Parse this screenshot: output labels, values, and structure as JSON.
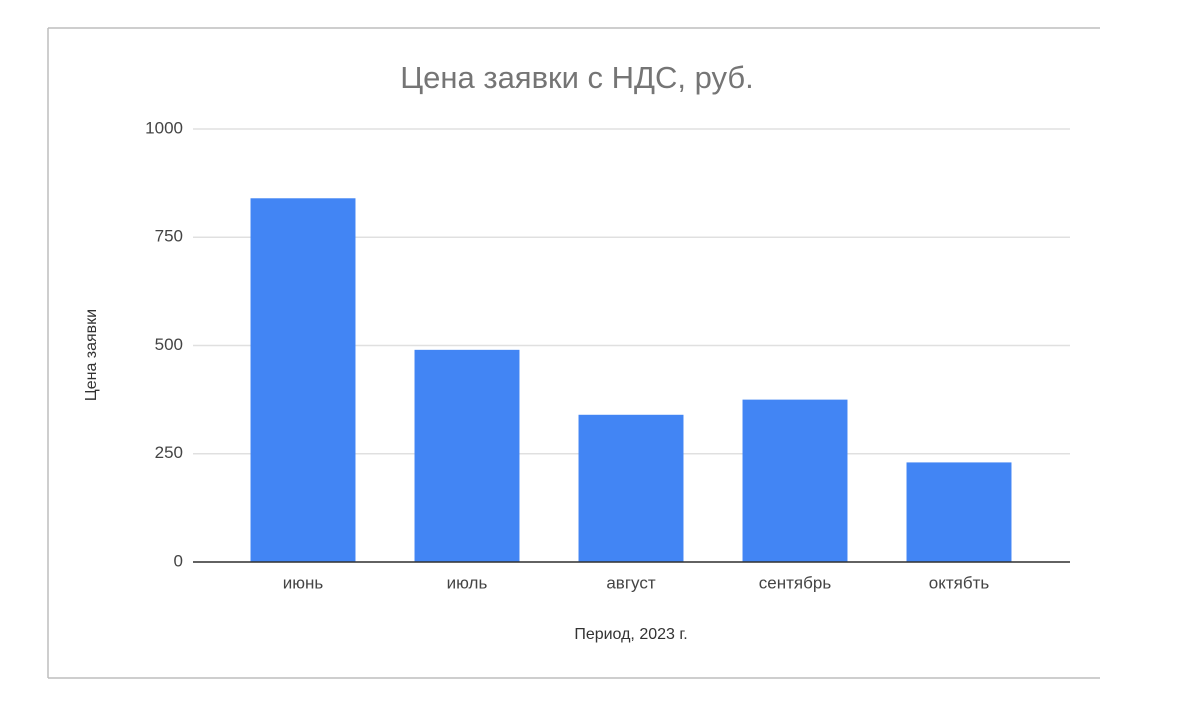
{
  "chart_data": {
    "type": "bar",
    "title": "Цена заявки с НДС, руб.",
    "x_label": "Период, 2023 г.",
    "y_label": "Цена заявки",
    "categories": [
      "июнь",
      "июль",
      "август",
      "сентябрь",
      "октябть"
    ],
    "values": [
      840,
      490,
      340,
      375,
      230
    ],
    "color": "#4285f4",
    "ylim": [
      0,
      1000
    ],
    "yticks": [
      0,
      250,
      500,
      750,
      1000
    ],
    "grid": true
  }
}
